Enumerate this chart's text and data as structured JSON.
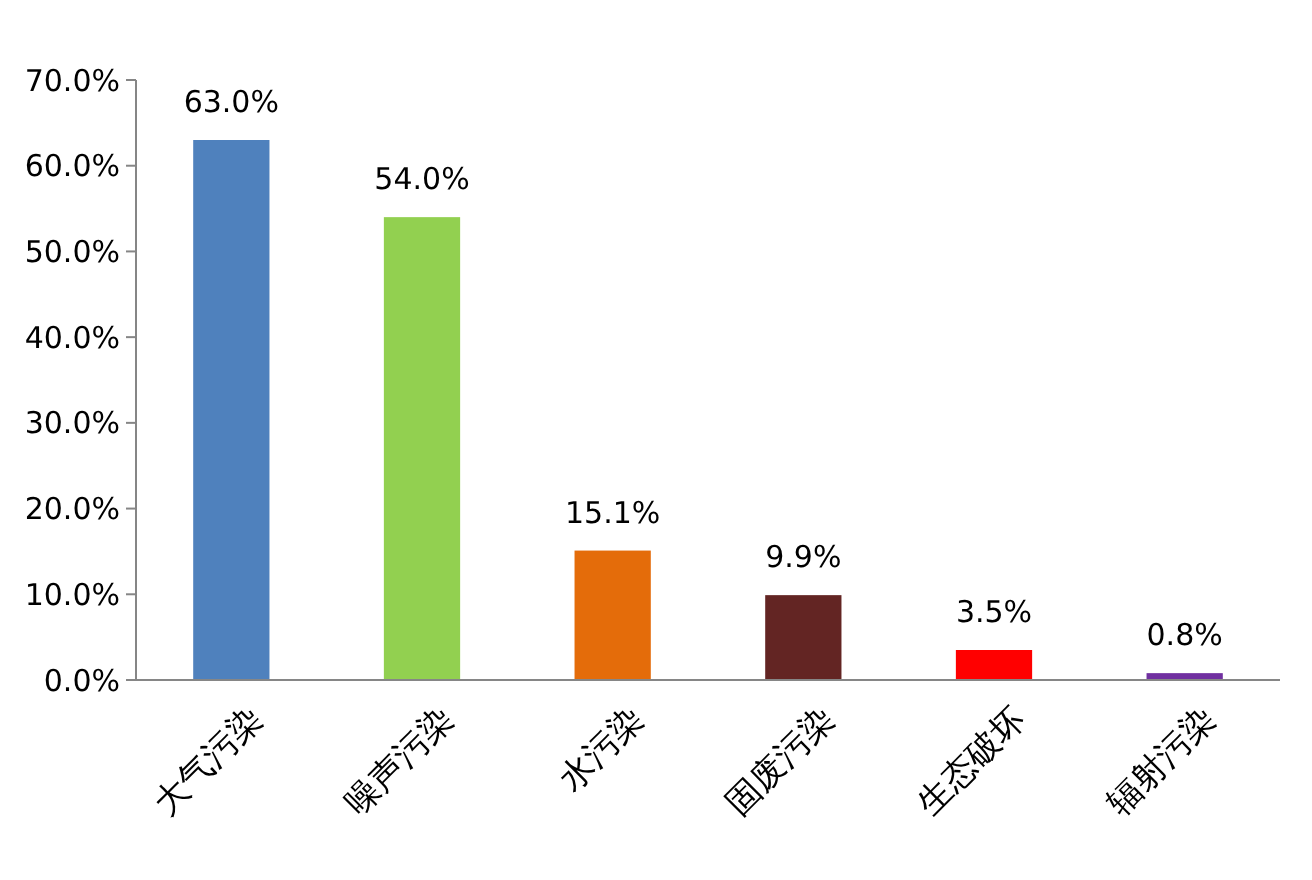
{
  "chart_data": {
    "type": "bar",
    "categories": [
      "大气污染",
      "噪声污染",
      "水污染",
      "固废污染",
      "生态破坏",
      "辐射污染"
    ],
    "values": [
      63.0,
      54.0,
      15.1,
      9.9,
      3.5,
      0.8
    ],
    "colors": [
      "#4f81bd",
      "#92d050",
      "#e46c0a",
      "#632523",
      "#ff0000",
      "#7030a0"
    ],
    "value_labels": [
      "63.0%",
      "54.0%",
      "15.1%",
      "9.9%",
      "3.5%",
      "0.8%"
    ],
    "ylim": [
      0,
      70
    ],
    "yticks": [
      {
        "value": 0,
        "label": "0.0%"
      },
      {
        "value": 10,
        "label": "10.0%"
      },
      {
        "value": 20,
        "label": "20.0%"
      },
      {
        "value": 30,
        "label": "30.0%"
      },
      {
        "value": 40,
        "label": "40.0%"
      },
      {
        "value": 50,
        "label": "50.0%"
      },
      {
        "value": 60,
        "label": "60.0%"
      },
      {
        "value": 70,
        "label": "70.0%"
      }
    ],
    "grid": false
  }
}
